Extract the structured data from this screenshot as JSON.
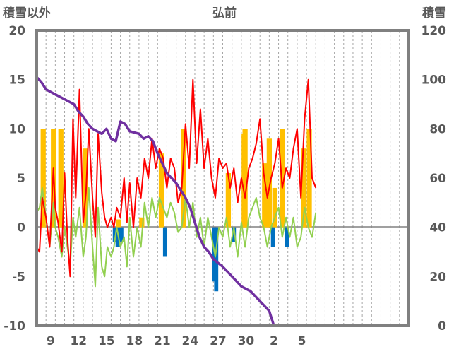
{
  "chart_data": {
    "type": "line",
    "title": "弘前",
    "ylabel_left": "積雪以外",
    "ylabel_right": "積雪",
    "left_axis": {
      "min": -10,
      "max": 20,
      "ticks": [
        -10,
        -5,
        0,
        5,
        10,
        15,
        20
      ]
    },
    "right_axis": {
      "min": 0,
      "max": 120,
      "ticks": [
        0,
        20,
        40,
        60,
        80,
        100,
        120
      ]
    },
    "x_domain": [
      0,
      40
    ],
    "x_ticks": [
      {
        "x": 1.5,
        "label": "9"
      },
      {
        "x": 4.5,
        "label": "12"
      },
      {
        "x": 7.5,
        "label": "15"
      },
      {
        "x": 10.5,
        "label": "18"
      },
      {
        "x": 13.5,
        "label": "21"
      },
      {
        "x": 16.5,
        "label": "24"
      },
      {
        "x": 19.5,
        "label": "27"
      },
      {
        "x": 22.5,
        "label": "30"
      },
      {
        "x": 25.5,
        "label": "2"
      },
      {
        "x": 28.5,
        "label": "5"
      }
    ],
    "grid": "vertical dashed",
    "colors": {
      "snow_depth": "#7030a0",
      "temperature": "#ff0000",
      "temperature_lower": "#92d050",
      "precip_positive": "#ffc000",
      "precip_negative": "#0070c0",
      "frame": "#808080"
    },
    "snow_depth": [
      [
        0,
        101
      ],
      [
        0.5,
        99
      ],
      [
        1,
        96
      ],
      [
        2,
        94
      ],
      [
        3,
        92
      ],
      [
        4,
        90
      ],
      [
        4.5,
        87
      ],
      [
        5,
        85
      ],
      [
        5.5,
        82
      ],
      [
        6,
        80
      ],
      [
        7,
        78
      ],
      [
        7.5,
        80
      ],
      [
        8,
        76
      ],
      [
        8.5,
        75
      ],
      [
        9,
        83
      ],
      [
        9.5,
        82
      ],
      [
        10,
        79
      ],
      [
        11,
        78
      ],
      [
        11.5,
        76
      ],
      [
        12,
        77
      ],
      [
        12.5,
        75
      ],
      [
        13,
        70
      ],
      [
        13.5,
        66
      ],
      [
        14,
        62
      ],
      [
        15,
        58
      ],
      [
        16,
        52
      ],
      [
        16.5,
        48
      ],
      [
        17,
        42
      ],
      [
        17.5,
        36
      ],
      [
        18,
        32
      ],
      [
        18.5,
        30
      ],
      [
        19,
        27
      ],
      [
        20,
        24
      ],
      [
        21,
        20
      ],
      [
        22,
        16
      ],
      [
        23,
        14
      ],
      [
        23.5,
        12
      ],
      [
        24,
        10
      ],
      [
        24.5,
        8
      ],
      [
        25,
        6
      ],
      [
        25.5,
        0
      ],
      [
        26,
        0
      ],
      [
        28,
        0
      ],
      [
        30,
        0
      ]
    ],
    "temperature": [
      [
        0,
        -2
      ],
      [
        0.3,
        -2.5
      ],
      [
        0.6,
        3
      ],
      [
        1,
        1
      ],
      [
        1.4,
        -2
      ],
      [
        1.8,
        6
      ],
      [
        2,
        2
      ],
      [
        2.3,
        0.5
      ],
      [
        2.7,
        -2.5
      ],
      [
        3,
        5.5
      ],
      [
        3.3,
        -1
      ],
      [
        3.6,
        -5
      ],
      [
        3.9,
        11
      ],
      [
        4.2,
        3
      ],
      [
        4.6,
        14
      ],
      [
        5,
        0.5
      ],
      [
        5.3,
        3.5
      ],
      [
        5.6,
        10
      ],
      [
        6,
        3
      ],
      [
        6.3,
        -1
      ],
      [
        6.6,
        9.5
      ],
      [
        7,
        3.5
      ],
      [
        7.3,
        1
      ],
      [
        7.6,
        0
      ],
      [
        8,
        1
      ],
      [
        8.3,
        0
      ],
      [
        8.6,
        2
      ],
      [
        9,
        1
      ],
      [
        9.4,
        5
      ],
      [
        9.7,
        0.5
      ],
      [
        10,
        4.5
      ],
      [
        10.4,
        0
      ],
      [
        10.8,
        5
      ],
      [
        11.2,
        3
      ],
      [
        11.6,
        7
      ],
      [
        12,
        5
      ],
      [
        12.4,
        9
      ],
      [
        12.8,
        6
      ],
      [
        13.2,
        8
      ],
      [
        13.6,
        7
      ],
      [
        14,
        4
      ],
      [
        14.4,
        7
      ],
      [
        14.8,
        6
      ],
      [
        15.2,
        2.5
      ],
      [
        15.6,
        4
      ],
      [
        16,
        10.5
      ],
      [
        16.4,
        6
      ],
      [
        16.8,
        15
      ],
      [
        17.2,
        6.5
      ],
      [
        17.6,
        12
      ],
      [
        18,
        6
      ],
      [
        18.4,
        9
      ],
      [
        18.8,
        5
      ],
      [
        19.2,
        3
      ],
      [
        19.6,
        7
      ],
      [
        20,
        6
      ],
      [
        20.4,
        6.5
      ],
      [
        20.8,
        4
      ],
      [
        21.2,
        6
      ],
      [
        21.6,
        2.5
      ],
      [
        22,
        5
      ],
      [
        22.4,
        3
      ],
      [
        22.8,
        6
      ],
      [
        23.2,
        7
      ],
      [
        23.6,
        8.5
      ],
      [
        24,
        11
      ],
      [
        24.4,
        5.5
      ],
      [
        24.8,
        3
      ],
      [
        25.2,
        5
      ],
      [
        25.6,
        6.5
      ],
      [
        26,
        9
      ],
      [
        26.4,
        4
      ],
      [
        26.8,
        6
      ],
      [
        27.2,
        5
      ],
      [
        27.6,
        8
      ],
      [
        28,
        10
      ],
      [
        28.4,
        3
      ],
      [
        28.8,
        11
      ],
      [
        29.2,
        15
      ],
      [
        29.6,
        5
      ],
      [
        30,
        4
      ]
    ],
    "temperature_lower": [
      [
        0,
        1.5
      ],
      [
        0.3,
        2
      ],
      [
        0.6,
        4
      ],
      [
        1,
        1
      ],
      [
        1.4,
        -2
      ],
      [
        1.8,
        2.5
      ],
      [
        2,
        0
      ],
      [
        2.3,
        -1
      ],
      [
        2.7,
        -3
      ],
      [
        3,
        0
      ],
      [
        3.3,
        -2
      ],
      [
        3.6,
        -4
      ],
      [
        3.9,
        1
      ],
      [
        4.2,
        -1
      ],
      [
        4.6,
        2
      ],
      [
        5,
        -3
      ],
      [
        5.3,
        -1
      ],
      [
        5.6,
        4
      ],
      [
        6,
        -2
      ],
      [
        6.3,
        -6
      ],
      [
        6.6,
        2
      ],
      [
        7,
        -4
      ],
      [
        7.3,
        -5
      ],
      [
        7.6,
        -2
      ],
      [
        8,
        -3
      ],
      [
        8.3,
        -2
      ],
      [
        8.6,
        0
      ],
      [
        9,
        -2
      ],
      [
        9.4,
        -1
      ],
      [
        9.7,
        -4
      ],
      [
        10,
        1
      ],
      [
        10.4,
        -3
      ],
      [
        10.8,
        0
      ],
      [
        11.2,
        -2
      ],
      [
        11.6,
        2.5
      ],
      [
        12,
        0
      ],
      [
        12.4,
        3
      ],
      [
        12.8,
        1
      ],
      [
        13.2,
        3
      ],
      [
        13.6,
        2
      ],
      [
        14,
        1
      ],
      [
        14.4,
        2.5
      ],
      [
        14.8,
        1.5
      ],
      [
        15.2,
        -0.5
      ],
      [
        15.6,
        0
      ],
      [
        16,
        3
      ],
      [
        16.4,
        0
      ],
      [
        16.8,
        2.5
      ],
      [
        17.2,
        -1
      ],
      [
        17.6,
        1
      ],
      [
        18,
        -2
      ],
      [
        18.4,
        1
      ],
      [
        18.8,
        -1
      ],
      [
        19.2,
        -3
      ],
      [
        19.6,
        0
      ],
      [
        20,
        -1
      ],
      [
        20.4,
        1
      ],
      [
        20.8,
        -2
      ],
      [
        21.2,
        0
      ],
      [
        21.6,
        -3
      ],
      [
        22,
        0.5
      ],
      [
        22.4,
        -2
      ],
      [
        22.8,
        1
      ],
      [
        23.2,
        2
      ],
      [
        23.6,
        3
      ],
      [
        24,
        1
      ],
      [
        24.4,
        0
      ],
      [
        24.8,
        -2
      ],
      [
        25.2,
        0
      ],
      [
        25.6,
        1
      ],
      [
        26,
        2
      ],
      [
        26.4,
        -1
      ],
      [
        26.8,
        1
      ],
      [
        27.2,
        -1
      ],
      [
        27.6,
        1
      ],
      [
        28,
        -2
      ],
      [
        28.4,
        -1
      ],
      [
        28.8,
        2
      ],
      [
        29.2,
        0
      ],
      [
        29.6,
        -1
      ],
      [
        30,
        1.5
      ]
    ],
    "precip_positive": [
      [
        0.7,
        10
      ],
      [
        1.8,
        10
      ],
      [
        2.6,
        10
      ],
      [
        5.2,
        8
      ],
      [
        8.8,
        0.8
      ],
      [
        11.3,
        1
      ],
      [
        13.4,
        7.5
      ],
      [
        15.8,
        10
      ],
      [
        20.6,
        5.5
      ],
      [
        22.3,
        9.5
      ],
      [
        22.4,
        10
      ],
      [
        24.5,
        6.5
      ],
      [
        25,
        9
      ],
      [
        25.6,
        4
      ],
      [
        26.4,
        10
      ],
      [
        28.7,
        8
      ],
      [
        29.3,
        10
      ]
    ],
    "precip_negative": [
      [
        8.4,
        -1.5
      ],
      [
        8.7,
        -2
      ],
      [
        9.1,
        -1.5
      ],
      [
        13.8,
        -3
      ],
      [
        19.1,
        -5.5
      ],
      [
        19.3,
        -6.5
      ],
      [
        21.2,
        -1.5
      ],
      [
        25.4,
        -2
      ],
      [
        26.9,
        -2
      ]
    ]
  }
}
